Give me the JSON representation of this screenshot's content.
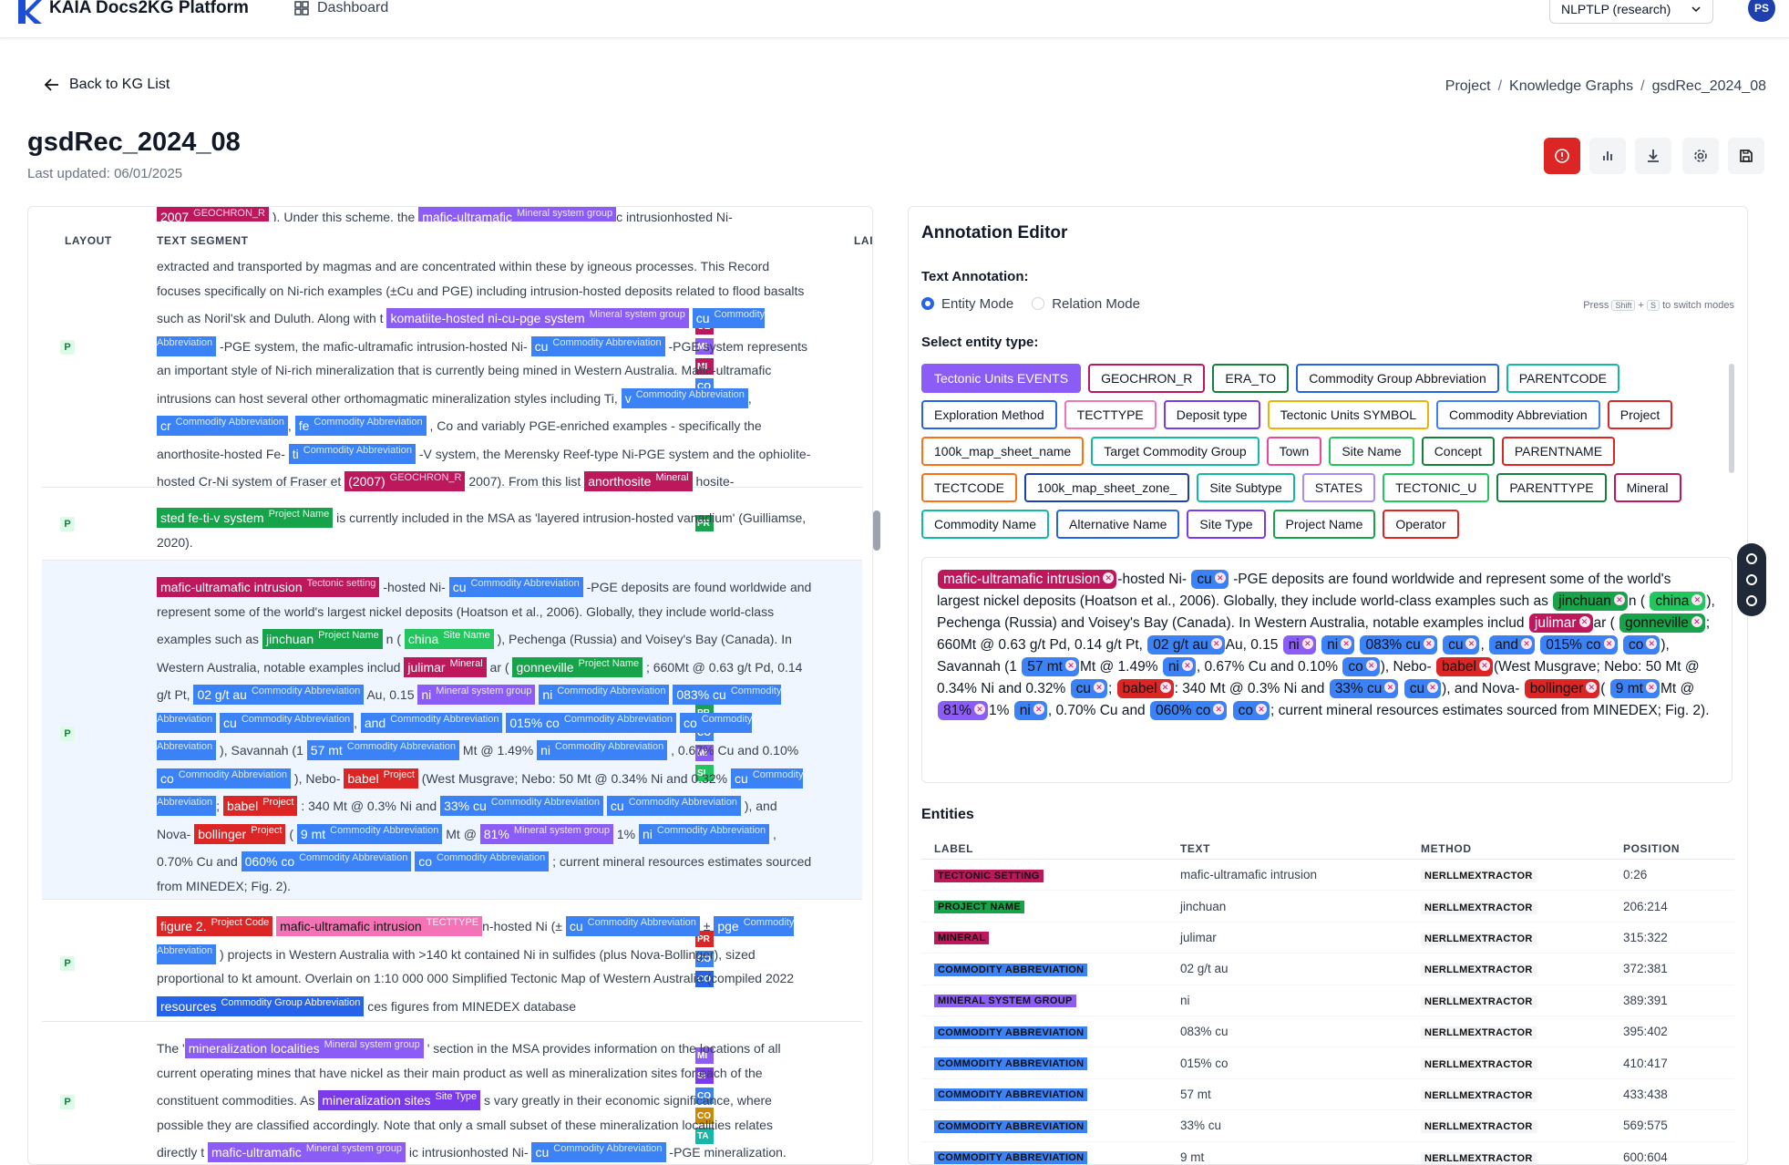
{
  "app": {
    "brand": "KAIA Docs2KG Platform",
    "dashboard": "Dashboard",
    "org": "NLPTLP (research)",
    "avatar": "PS"
  },
  "header": {
    "back": "Back to KG List",
    "crumbs": [
      "Project",
      "Knowledge Graphs",
      "gsdRec_2024_08"
    ],
    "title": "gsdRec_2024_08",
    "updated": "Last updated: 06/01/2025"
  },
  "left": {
    "col_layout": "LAYOUT",
    "col_text": "TEXT SEGMENT",
    "col_labels": "LAI",
    "layout_badge": "P"
  },
  "editor": {
    "title": "Annotation Editor",
    "text_annotation": "Text Annotation:",
    "mode_entity": "Entity Mode",
    "mode_relation": "Relation Mode",
    "hint_pre": "Press",
    "hint_key1": "Shift",
    "hint_plus": "+",
    "hint_key2": "S",
    "hint_post": "to switch modes",
    "select_type": "Select entity type:",
    "entity_types": [
      {
        "label": "Tectonic Units EVENTS",
        "color": "#8b5cf6",
        "active": true
      },
      {
        "label": "GEOCHRON_R",
        "color": "#be185d"
      },
      {
        "label": "ERA_TO",
        "color": "#15803d"
      },
      {
        "label": "Commodity Group Abbreviation",
        "color": "#2563eb"
      },
      {
        "label": "PARENTCODE",
        "color": "#14b8a6"
      },
      {
        "label": "Exploration Method",
        "color": "#2563eb"
      },
      {
        "label": "TECTTYPE",
        "color": "#f472b6"
      },
      {
        "label": "Deposit type",
        "color": "#7c3aed"
      },
      {
        "label": "Tectonic Units SYMBOL",
        "color": "#eab308"
      },
      {
        "label": "Commodity Abbreviation",
        "color": "#3b82f6"
      },
      {
        "label": "Project",
        "color": "#dc2626"
      },
      {
        "label": "100k_map_sheet_name",
        "color": "#f97316"
      },
      {
        "label": "Target Commodity Group",
        "color": "#14b8a6"
      },
      {
        "label": "Town",
        "color": "#ec4899"
      },
      {
        "label": "Site Name",
        "color": "#22c55e"
      },
      {
        "label": "Concept",
        "color": "#15803d"
      },
      {
        "label": "PARENTNAME",
        "color": "#dc2626"
      },
      {
        "label": "TECTCODE",
        "color": "#f97316"
      },
      {
        "label": "100k_map_sheet_zone_",
        "color": "#1e40af"
      },
      {
        "label": "Site Subtype",
        "color": "#14b8a6"
      },
      {
        "label": "STATES",
        "color": "#a78bfa"
      },
      {
        "label": "TECTONIC_U",
        "color": "#22c55e"
      },
      {
        "label": "PARENTTYPE",
        "color": "#15803d"
      },
      {
        "label": "Mineral",
        "color": "#be185d"
      },
      {
        "label": "Commodity Name",
        "color": "#14b8a6"
      },
      {
        "label": "Alternative Name",
        "color": "#2563eb"
      },
      {
        "label": "Site Type",
        "color": "#7c3aed"
      },
      {
        "label": "Project Name",
        "color": "#16a34a"
      },
      {
        "label": "Operator",
        "color": "#dc2626"
      }
    ]
  },
  "entities": {
    "title": "Entities",
    "headers": [
      "LABEL",
      "TEXT",
      "METHOD",
      "POSITION"
    ],
    "rows": [
      {
        "label": "TECTONIC SETTING",
        "color": "#be185d",
        "text": "mafic-ultramafic intrusion",
        "method": "NERLLMEXTRACTOR",
        "pos": "0:26"
      },
      {
        "label": "PROJECT NAME",
        "color": "#16a34a",
        "text": "jinchuan",
        "method": "NERLLMEXTRACTOR",
        "pos": "206:214"
      },
      {
        "label": "MINERAL",
        "color": "#be185d",
        "text": "julimar",
        "method": "NERLLMEXTRACTOR",
        "pos": "315:322"
      },
      {
        "label": "COMMODITY ABBREVIATION",
        "color": "#3b82f6",
        "text": "02 g/t au",
        "method": "NERLLMEXTRACTOR",
        "pos": "372:381"
      },
      {
        "label": "MINERAL SYSTEM GROUP",
        "color": "#8b5cf6",
        "text": "ni",
        "method": "NERLLMEXTRACTOR",
        "pos": "389:391"
      },
      {
        "label": "COMMODITY ABBREVIATION",
        "color": "#3b82f6",
        "text": "083% cu",
        "method": "NERLLMEXTRACTOR",
        "pos": "395:402"
      },
      {
        "label": "COMMODITY ABBREVIATION",
        "color": "#3b82f6",
        "text": "015% co",
        "method": "NERLLMEXTRACTOR",
        "pos": "410:417"
      },
      {
        "label": "COMMODITY ABBREVIATION",
        "color": "#3b82f6",
        "text": "57 mt",
        "method": "NERLLMEXTRACTOR",
        "pos": "433:438"
      },
      {
        "label": "COMMODITY ABBREVIATION",
        "color": "#3b82f6",
        "text": "33% cu",
        "method": "NERLLMEXTRACTOR",
        "pos": "569:575"
      },
      {
        "label": "COMMODITY ABBREVIATION",
        "color": "#3b82f6",
        "text": "9 mt",
        "method": "NERLLMEXTRACTOR",
        "pos": "600:604"
      }
    ]
  },
  "segments": {
    "s1": {
      "top_a": "2007",
      "top_a_tag": "GEOCHRON_R",
      "top_b": "). Under this scheme, the",
      "top_c": "mafic-ultramafic",
      "top_c_tag": "Mineral system group",
      "top_d": "c intrusionhosted Ni-",
      "t1": "extracted and transported by magmas and are concentrated within these by igneous processes. This Record focuses specifically on Ni-rich examples (±Cu and PGE) including intrusion-hosted deposits related to flood basalts such as Noril'sk and Duluth. Along with t",
      "e1": "komatiite-hosted ni-cu-pge system",
      "e1tag": "Mineral system group",
      "e2": "cu",
      "e2tag": "Commodity Abbreviation",
      "t2": "-PGE system, the mafic-ultramafic intrusion-hosted Ni-",
      "e3": "cu",
      "e3tag": "Commodity Abbreviation",
      "t3": "-PGE system represents an important style of Ni-rich mineralization that is currently being mined in Western Australia. Mafic-ultramafic intrusions can host several other orthomagmatic mineralization styles including Ti,",
      "e4": "v",
      "e4tag": "Commodity Abbreviation",
      "t4": ",",
      "e5": "cr",
      "e5tag": "Commodity Abbreviation",
      "t5": ",",
      "e6": "fe",
      "e6tag": "Commodity Abbreviation",
      "t6": ", Co and variably PGE-enriched examples - specifically the anorthosite-hosted Fe-",
      "e7": "ti",
      "e7tag": "Commodity Abbreviation",
      "t7": "-V system, the Merensky Reef-type Ni-PGE system and the ophiolite-hosted Cr-Ni system of Fraser et",
      "e8": "(2007)",
      "e8tag": "GEOCHRON_R",
      "t8": "2007). From this list",
      "e9": "anorthosite",
      "e9tag": "Mineral",
      "t9": "hosite-"
    },
    "s2": {
      "e1": "sted fe-ti-v system",
      "e1tag": "Project Name",
      "t1": "is currently included in the MSA as 'layered intrusion-hosted vanadium' (Guilliamse, 2020)."
    },
    "s3": {
      "e1": "mafic-ultramafic intrusion",
      "e1tag": "Tectonic setting",
      "t1": "-hosted Ni-",
      "e2": "cu",
      "e2tag": "Commodity Abbreviation",
      "t2": "-PGE deposits are found worldwide and represent some of the world's largest nickel deposits (Hoatson et al., 2006). Globally, they include world-class examples such as",
      "e3": "jinchuan",
      "e3tag": "Project Name",
      "t3": "n (",
      "e4": "china",
      "e4tag": "Site Name",
      "t4": "), Pechenga (Russia) and Voisey's Bay (Canada). In Western Australia, notable examples includ",
      "e5": "julimar",
      "e5tag": "Mineral",
      "t5": "ar (",
      "e6": "gonneville",
      "e6tag": "Project Name",
      "t6": "; 660Mt @ 0.63 g/t Pd, 0.14 g/t Pt,",
      "e7": "02 g/t au",
      "e7tag": "Commodity Abbreviation",
      "t7": "Au, 0.15",
      "e8": "ni",
      "e8tag": "Mineral system group",
      "t8": "",
      "e9": "ni",
      "e9tag": "Commodity Abbreviation",
      "t9": "",
      "e10": "083% cu",
      "e10tag": "Commodity Abbreviation",
      "t10": "",
      "e11": "cu",
      "e11tag": "Commodity Abbreviation",
      "t11": ",",
      "e12": "and",
      "e12tag": "Commodity Abbreviation",
      "t12": "",
      "e13": "015% co",
      "e13tag": "Commodity Abbreviation",
      "t13": "",
      "e14": "co",
      "e14tag": "Commodity Abbreviation",
      "t14": "), Savannah (1",
      "e15": "57 mt",
      "e15tag": "Commodity Abbreviation",
      "t15": "Mt @ 1.49%",
      "e16": "ni",
      "e16tag": "Commodity Abbreviation",
      "t16": ", 0.67% Cu and 0.10%",
      "e17": "co",
      "e17tag": "Commodity Abbreviation",
      "t17": "), Nebo-",
      "e18": "babel",
      "e18tag": "Project",
      "t18": "(West Musgrave; Nebo: 50 Mt @ 0.34% Ni and 0.32%",
      "e19": "cu",
      "e19tag": "Commodity Abbreviation",
      "t19": ";",
      "e20": "babel",
      "e20tag": "Project",
      "t20": ": 340 Mt @ 0.3% Ni and",
      "e21": "33% cu",
      "e21tag": "Commodity Abbreviation",
      "t21": "",
      "e22": "cu",
      "e22tag": "Commodity Abbreviation",
      "t22": "), and Nova-",
      "e23": "bollinger",
      "e23tag": "Project",
      "t23": "(",
      "e24": "9 mt",
      "e24tag": "Commodity Abbreviation",
      "t24": "Mt @",
      "e25": "81%",
      "e25tag": "Mineral system group",
      "t25": "1%",
      "e26": "ni",
      "e26tag": "Commodity Abbreviation",
      "t26": ", 0.70% Cu and",
      "e27": "060% co",
      "e27tag": "Commodity Abbreviation",
      "t27": "",
      "e28": "co",
      "e28tag": "Commodity Abbreviation",
      "t28": "; current mineral resources estimates sourced from MINEDEX; Fig. 2)."
    },
    "s4": {
      "e1": "figure 2.",
      "e1tag": "Project Code",
      "e2": "mafic-ultramafic intrusion",
      "e2tag": "TECTTYPE",
      "t2": "n-hosted Ni (±",
      "e3": "cu",
      "e3tag": "Commodity Abbreviation",
      "t3": "±",
      "e4": "pge",
      "e4tag": "Commodity Abbreviation",
      "t4": ") projects in Western Australia with >140 kt contained Ni in sulfides (plus Nova-Bollinger), sized proportional to kt amount. Overlain on 1:10 000 000 Simplified Tectonic Map of Western Australia (compiled 2022",
      "e5": "resources",
      "e5tag": "Commodity Group Abbreviation",
      "t5": "ces figures from MINEDEX database"
    },
    "s5": {
      "t0": "The '",
      "e1": "mineralization localities",
      "e1tag": "Mineral system group",
      "t1": "' section in the MSA provides information on the locations of all current operating mines that have nickel as their main product as well as mineralization sites for each of the constituent commodities. As",
      "e2": "mineralization sites",
      "e2tag": "Site Type",
      "t2": "s vary greatly in their economic significance, where possible they are classified accordingly. Note that only a small subset of these mineralization localities relates directly t",
      "e3": "mafic-ultramafic",
      "e3tag": "Mineral system group",
      "t3": "ic intrusionhosted Ni-",
      "e4": "cu",
      "e4tag": "Commodity Abbreviation",
      "t4": "-PGE mineralization. These are shown as 'Mafic and ultramafic - layered mafic intrusions' within the 'Mineralization"
    }
  },
  "left_tags": {
    "r1": [
      {
        "t": "GE",
        "c": "#be185d"
      },
      {
        "t": "MI",
        "c": "#8b5cf6"
      },
      {
        "t": "MI",
        "c": "#be185d"
      },
      {
        "t": "CO",
        "c": "#3b82f6"
      }
    ],
    "r2": [
      {
        "t": "PR",
        "c": "#16a34a"
      }
    ],
    "r3": [
      {
        "t": "TE",
        "c": "#be185d"
      },
      {
        "t": "PR",
        "c": "#16a34a"
      },
      {
        "t": "CO",
        "c": "#3b82f6"
      },
      {
        "t": "MI",
        "c": "#8b5cf6"
      },
      {
        "t": "SI",
        "c": "#22c55e"
      }
    ],
    "r4": [
      {
        "t": "PR",
        "c": "#dc2626"
      },
      {
        "t": "CO",
        "c": "#3b82f6"
      },
      {
        "t": "CO",
        "c": "#2563eb"
      }
    ],
    "r5": [
      {
        "t": "MI",
        "c": "#8b5cf6"
      },
      {
        "t": "SI",
        "c": "#7c3aed"
      },
      {
        "t": "CO",
        "c": "#3b82f6"
      },
      {
        "t": "CO",
        "c": "#ca8a04"
      },
      {
        "t": "TA",
        "c": "#14b8a6"
      }
    ]
  },
  "editor_text": {
    "c1": "mafic-ultramafic intrusion",
    "t1": "-hosted Ni-",
    "c2": "cu",
    "t2": "-PGE deposits are found worldwide and represent some of the world's largest nickel deposits (Hoatson et al., 2006). Globally, they include world-class examples such as",
    "c3": "jinchuan",
    "t3": "n (",
    "c4": "china",
    "t4": "), Pechenga (Russia) and Voisey's Bay (Canada). In Western Australia, notable examples includ",
    "c5": "julimar",
    "t5": "ar (",
    "c6": "gonneville",
    "t6": "; 660Mt @ 0.63 g/t Pd, 0.14 g/t Pt,",
    "c7": "02 g/t au",
    "t7": "Au, 0.15",
    "c8": "ni",
    "c9": "ni",
    "c10": "083% cu",
    "c11": "cu",
    "t11": ",",
    "c12": "and",
    "c13": "015% co",
    "c14": "co",
    "t14": "), Savannah (1",
    "c15": "57 mt",
    "t15": "Mt @ 1.49%",
    "c16": "ni",
    "t16": ", 0.67% Cu and 0.10%",
    "c17": "co",
    "t17": "), Nebo-",
    "c18": "babel",
    "t18": "(West Musgrave; Nebo: 50 Mt @ 0.34% Ni and 0.32%",
    "c19": "cu",
    "t19": ";",
    "c20": "babel",
    "t20": ": 340 Mt @ 0.3% Ni and",
    "c21": "33% cu",
    "c22": "cu",
    "t22": "), and Nova-",
    "c23": "bollinger",
    "t23": "(",
    "c24": "9 mt",
    "t24": "Mt @",
    "c25": "81%",
    "t25": "1%",
    "c26": "ni",
    "t26": ", 0.70% Cu and",
    "c27": "060% co",
    "c28": "co",
    "t28": "; current mineral resources estimates sourced from MINEDEX; Fig. 2)."
  }
}
